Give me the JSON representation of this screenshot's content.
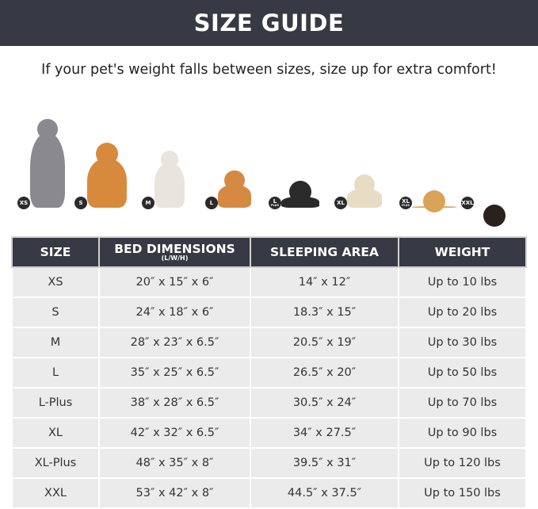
{
  "title": "SIZE GUIDE",
  "subtitle": "If your pet's weight falls between sizes, size up for extra comfort!",
  "pets": [
    {
      "badge": "XS",
      "badge_sub": "",
      "color": "#8a8a8e"
    },
    {
      "badge": "S",
      "badge_sub": "",
      "color": "#d88a3c"
    },
    {
      "badge": "M",
      "badge_sub": "",
      "color": "#e8e4de"
    },
    {
      "badge": "L",
      "badge_sub": "",
      "color": "#d58a44"
    },
    {
      "badge": "L",
      "badge_sub": "PLUS",
      "color": "#2a2a2a"
    },
    {
      "badge": "XL",
      "badge_sub": "",
      "color": "#e9dcc4"
    },
    {
      "badge": "XL",
      "badge_sub": "PLUS",
      "color": "#d9a35a"
    },
    {
      "badge": "XXL",
      "badge_sub": "",
      "color": "#2a211c"
    }
  ],
  "table": {
    "headers": {
      "size": "SIZE",
      "bed": "BED DIMENSIONS",
      "bed_sub": "(L/W/H)",
      "area": "SLEEPING AREA",
      "weight": "WEIGHT"
    },
    "rows": [
      [
        "XS",
        "20″ x 15″ x 6″",
        "14″ x 12″",
        "Up to 10 lbs"
      ],
      [
        "S",
        "24″ x 18″ x 6″",
        "18.3″ x 15″",
        "Up to 20 lbs"
      ],
      [
        "M",
        "28″ x 23″ x 6.5″",
        "20.5″ x 19″",
        "Up to 30 lbs"
      ],
      [
        "L",
        "35″ x 25″ x 6.5″",
        "26.5″ x 20″",
        "Up to 50 lbs"
      ],
      [
        "L-Plus",
        "38″ x 28″ x 6.5″",
        "30.5″ x 24″",
        "Up to 70 lbs"
      ],
      [
        "XL",
        "42″ x 32″ x 6.5″",
        "34″ x 27.5″",
        "Up to 90 lbs"
      ],
      [
        "XL-Plus",
        "48″ x 35″ x 8″",
        "39.5″ x 31″",
        "Up to 120 lbs"
      ],
      [
        "XXL",
        "53″ x 42″ x 8″",
        "44.5″ x 37.5″",
        "Up to 150 lbs"
      ]
    ]
  }
}
